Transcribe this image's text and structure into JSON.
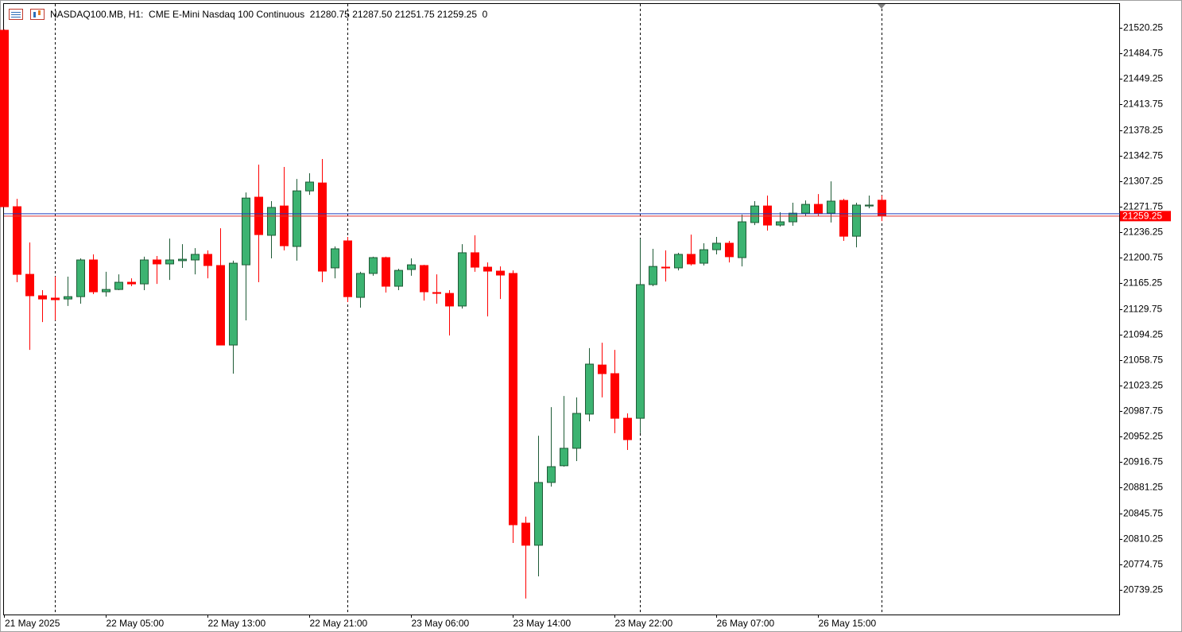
{
  "chart_data": {
    "type": "candlestick",
    "title": "NASDAQ100.MB, H1:  CME E-Mini Nasdaq 100 Continuous  21280.75 21287.50 21251.75 21259.25  0",
    "categories": [
      "21 May 2025",
      null,
      null,
      null,
      null,
      null,
      null,
      null,
      "22 May 05:00",
      null,
      null,
      null,
      null,
      null,
      null,
      null,
      "22 May 13:00",
      null,
      null,
      null,
      null,
      null,
      null,
      null,
      "22 May 21:00",
      null,
      null,
      null,
      null,
      null,
      null,
      null,
      "23 May 06:00",
      null,
      null,
      null,
      null,
      null,
      null,
      null,
      "23 May 14:00",
      null,
      null,
      null,
      null,
      null,
      null,
      null,
      "23 May 22:00",
      null,
      null,
      null,
      null,
      null,
      null,
      null,
      "26 May 07:00",
      null,
      null,
      null,
      null,
      null,
      null,
      null,
      "26 May 15:00",
      null,
      null,
      null,
      null,
      null
    ],
    "open": [
      21517.0,
      21271.75,
      21177.75,
      21148.0,
      21144.75,
      21143.5,
      21146.75,
      21197.75,
      21153.5,
      21156.75,
      21166.75,
      21164.5,
      21197.75,
      21192.25,
      21196.75,
      21197.75,
      21205.5,
      21190.0,
      21079.5,
      21191.0,
      21285.0,
      21232.0,
      21272.75,
      21216.5,
      21293.75,
      21304.75,
      21186.75,
      21224.25,
      21145.75,
      21179.0,
      21201.0,
      21161.25,
      21184.5,
      21190.0,
      21152.5,
      21151.25,
      21133.75,
      21207.75,
      21187.75,
      21182.25,
      21179.0,
      20832.0,
      20801.25,
      20888.5,
      20911.75,
      20936.0,
      20983.5,
      21051.75,
      21039.75,
      20977.75,
      20977.75,
      21163.5,
      21187.75,
      21186.75,
      21205.5,
      21193.25,
      21212.0,
      21221.0,
      21201.0,
      21249.75,
      21272.75,
      21246.25,
      21250.75,
      21262.75,
      21275.0,
      21262.75,
      21280.5,
      21230.75,
      21272.75,
      21280.75
    ],
    "high": [
      21518.0,
      21282.75,
      21222.0,
      21155.75,
      21174.5,
      21174.5,
      21200.0,
      21205.5,
      21181.25,
      21177.75,
      21172.25,
      21202.25,
      21203.25,
      21227.5,
      21219.75,
      21214.25,
      21211.0,
      21241.75,
      21196.75,
      21291.5,
      21330.25,
      21279.5,
      21327.0,
      21310.25,
      21318.25,
      21338.0,
      21216.5,
      21229.75,
      21181.25,
      21202.25,
      21202.25,
      21185.5,
      21200.0,
      21191.0,
      21177.75,
      21155.75,
      21219.75,
      21232.0,
      21194.25,
      21188.75,
      21183.25,
      20841.0,
      20953.5,
      20993.25,
      21008.75,
      21006.75,
      21075.25,
      21082.75,
      21072.75,
      20984.5,
      21227.5,
      21213.25,
      21211.0,
      21207.75,
      21233.0,
      21221.0,
      21229.75,
      21224.25,
      21260.75,
      21279.5,
      21287.25,
      21264.0,
      21277.25,
      21280.5,
      21289.25,
      21307.0,
      21282.75,
      21277.25,
      21287.25,
      21287.5
    ],
    "low": [
      21271.75,
      21166.75,
      21072.75,
      21111.5,
      21113.75,
      21133.75,
      21137.0,
      21150.25,
      21146.75,
      21155.75,
      21161.25,
      21155.75,
      21164.5,
      21170.0,
      21186.75,
      21177.75,
      21172.25,
      21079.5,
      21039.75,
      21113.75,
      21166.75,
      21200.0,
      21211.0,
      21196.75,
      21288.25,
      21166.75,
      21172.25,
      21139.25,
      21131.5,
      21175.75,
      21152.5,
      21155.75,
      21175.75,
      21141.25,
      21137.0,
      21092.75,
      21130.25,
      21181.25,
      21119.25,
      21143.5,
      20804.5,
      20727.25,
      20758.0,
      20882.75,
      20910.5,
      20918.25,
      20973.5,
      21006.75,
      20957.0,
      20933.75,
      20957.0,
      21161.25,
      21167.75,
      21183.25,
      21190.0,
      21190.0,
      21205.5,
      21194.25,
      21188.75,
      21246.25,
      21238.5,
      21244.0,
      21245.25,
      21258.5,
      21258.5,
      21249.75,
      21224.25,
      21215.25,
      21269.5,
      21251.75
    ],
    "close": [
      21271.75,
      21177.75,
      21148.0,
      21143.5,
      21142.5,
      21146.75,
      21197.75,
      21153.5,
      21156.75,
      21166.75,
      21164.5,
      21197.75,
      21192.25,
      21197.75,
      21198.75,
      21205.5,
      21190.0,
      21079.5,
      21193.25,
      21283.75,
      21233.0,
      21270.75,
      21217.5,
      21293.75,
      21306.0,
      21182.25,
      21213.25,
      21146.75,
      21179.0,
      21201.0,
      21161.25,
      21183.25,
      21191.0,
      21153.5,
      21151.25,
      21133.75,
      21207.75,
      21187.75,
      21182.25,
      21176.75,
      20829.75,
      20801.25,
      20888.5,
      20910.5,
      20936.0,
      20984.5,
      21053.0,
      21039.75,
      20977.75,
      20948.0,
      21163.5,
      21188.75,
      21186.75,
      21205.5,
      21192.25,
      21212.0,
      21221.0,
      21202.25,
      21250.75,
      21272.75,
      21246.25,
      21250.75,
      21262.75,
      21275.0,
      21262.75,
      21279.5,
      21230.75,
      21274.0,
      21274.0,
      21259.25
    ],
    "up_color": "#3cb371",
    "up_outline": "#1e5b36",
    "down_color": "#ff0000",
    "ylim": [
      20705.0,
      21553.5
    ],
    "yticks": [
      21520.25,
      21484.75,
      21449.25,
      21413.75,
      21378.25,
      21342.75,
      21307.25,
      21271.75,
      21236.25,
      21200.75,
      21165.25,
      21129.75,
      21094.25,
      21058.75,
      21023.25,
      20987.75,
      20952.25,
      20916.75,
      20881.25,
      20845.75,
      20810.25,
      20774.75,
      20739.25
    ],
    "last_price": 21259.25,
    "grid": false
  }
}
